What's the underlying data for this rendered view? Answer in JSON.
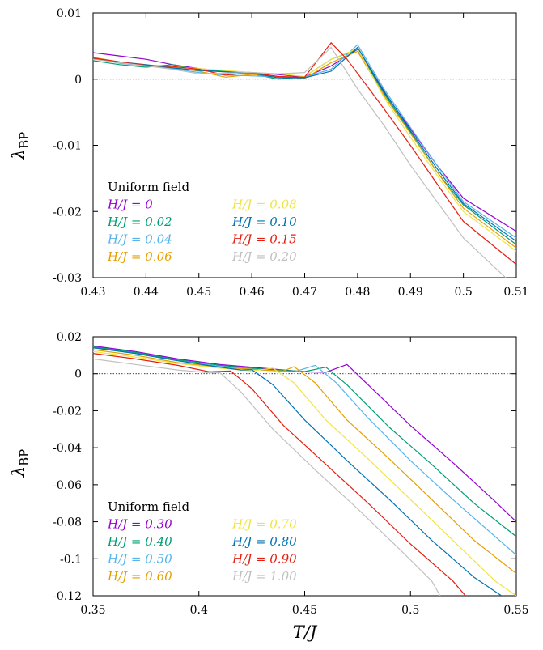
{
  "colors": {
    "purple": "#9400d3",
    "green": "#009e73",
    "skyblue": "#56b4e9",
    "orange": "#e69f00",
    "yellow": "#f0e442",
    "blue": "#0072b2",
    "red": "#e51e10",
    "gray": "#c0c0c0"
  },
  "chart_data": [
    {
      "type": "line",
      "xlabel": "",
      "ylabel": "λ_BP",
      "xlim": [
        0.43,
        0.51
      ],
      "ylim": [
        -0.03,
        0.01
      ],
      "xticks": [
        "0.43",
        "0.44",
        "0.45",
        "0.46",
        "0.47",
        "0.48",
        "0.49",
        "0.5",
        "0.51"
      ],
      "yticks": [
        "-0.03",
        "-0.02",
        "-0.01",
        "0",
        "0.01"
      ],
      "reference_line_y": 0,
      "legend_title": "Uniform field",
      "legend_position": "bottom-left",
      "series": [
        {
          "name": "H/J = 0",
          "color": "#9400d3",
          "points": [
            [
              0.43,
              0.004
            ],
            [
              0.435,
              0.0035
            ],
            [
              0.44,
              0.003
            ],
            [
              0.445,
              0.0022
            ],
            [
              0.45,
              0.0016
            ],
            [
              0.455,
              0.0012
            ],
            [
              0.46,
              0.001
            ],
            [
              0.465,
              0.0007
            ],
            [
              0.47,
              0.0003
            ],
            [
              0.475,
              0.002
            ],
            [
              0.48,
              0.0045
            ],
            [
              0.485,
              -0.002
            ],
            [
              0.49,
              -0.0075
            ],
            [
              0.495,
              -0.013
            ],
            [
              0.5,
              -0.018
            ],
            [
              0.51,
              -0.023
            ]
          ]
        },
        {
          "name": "H/J = 0.02",
          "color": "#009e73",
          "points": [
            [
              0.43,
              0.0028
            ],
            [
              0.435,
              0.0022
            ],
            [
              0.44,
              0.0018
            ],
            [
              0.445,
              0.0022
            ],
            [
              0.45,
              0.0014
            ],
            [
              0.455,
              0.0012
            ],
            [
              0.46,
              0.0008
            ],
            [
              0.465,
              0.0
            ],
            [
              0.47,
              0.0004
            ],
            [
              0.475,
              0.003
            ],
            [
              0.48,
              0.0045
            ],
            [
              0.485,
              -0.0022
            ],
            [
              0.49,
              -0.008
            ],
            [
              0.495,
              -0.014
            ],
            [
              0.5,
              -0.019
            ],
            [
              0.51,
              -0.025
            ]
          ]
        },
        {
          "name": "H/J = 0.04",
          "color": "#56b4e9",
          "points": [
            [
              0.43,
              0.0032
            ],
            [
              0.435,
              0.0024
            ],
            [
              0.44,
              0.002
            ],
            [
              0.445,
              0.0016
            ],
            [
              0.45,
              0.001
            ],
            [
              0.455,
              0.0006
            ],
            [
              0.46,
              0.0005
            ],
            [
              0.465,
              0.0003
            ],
            [
              0.47,
              0.0003
            ],
            [
              0.475,
              0.0015
            ],
            [
              0.48,
              0.0052
            ],
            [
              0.485,
              -0.0015
            ],
            [
              0.49,
              -0.0073
            ],
            [
              0.495,
              -0.013
            ],
            [
              0.5,
              -0.0185
            ],
            [
              0.51,
              -0.024
            ]
          ]
        },
        {
          "name": "H/J = 0.06",
          "color": "#e69f00",
          "points": [
            [
              0.43,
              0.0033
            ],
            [
              0.435,
              0.0026
            ],
            [
              0.44,
              0.002
            ],
            [
              0.445,
              0.0018
            ],
            [
              0.45,
              0.0012
            ],
            [
              0.455,
              0.0003
            ],
            [
              0.46,
              0.0007
            ],
            [
              0.465,
              0.0004
            ],
            [
              0.47,
              0.0001
            ],
            [
              0.475,
              0.0025
            ],
            [
              0.48,
              0.0042
            ],
            [
              0.485,
              -0.0025
            ],
            [
              0.49,
              -0.0082
            ],
            [
              0.495,
              -0.014
            ],
            [
              0.5,
              -0.0195
            ],
            [
              0.51,
              -0.0255
            ]
          ]
        },
        {
          "name": "H/J = 0.08",
          "color": "#f0e442",
          "points": [
            [
              0.43,
              0.003
            ],
            [
              0.435,
              0.0025
            ],
            [
              0.44,
              0.0021
            ],
            [
              0.445,
              0.0019
            ],
            [
              0.45,
              0.0016
            ],
            [
              0.455,
              0.0013
            ],
            [
              0.46,
              0.001
            ],
            [
              0.465,
              0.0008
            ],
            [
              0.47,
              0.0004
            ],
            [
              0.475,
              0.003
            ],
            [
              0.48,
              0.0046
            ],
            [
              0.485,
              -0.0028
            ],
            [
              0.49,
              -0.0088
            ],
            [
              0.495,
              -0.0145
            ],
            [
              0.5,
              -0.02
            ],
            [
              0.51,
              -0.026
            ]
          ]
        },
        {
          "name": "H/J = 0.10",
          "color": "#0072b2",
          "points": [
            [
              0.43,
              0.0031
            ],
            [
              0.435,
              0.0026
            ],
            [
              0.44,
              0.0022
            ],
            [
              0.445,
              0.0017
            ],
            [
              0.45,
              0.0013
            ],
            [
              0.455,
              0.0011
            ],
            [
              0.46,
              0.0009
            ],
            [
              0.465,
              0.0002
            ],
            [
              0.47,
              0.0002
            ],
            [
              0.475,
              0.0012
            ],
            [
              0.48,
              0.0048
            ],
            [
              0.485,
              -0.0018
            ],
            [
              0.49,
              -0.0078
            ],
            [
              0.495,
              -0.0135
            ],
            [
              0.5,
              -0.0188
            ],
            [
              0.51,
              -0.0245
            ]
          ]
        },
        {
          "name": "H/J = 0.15",
          "color": "#e51e10",
          "points": [
            [
              0.43,
              0.0032
            ],
            [
              0.435,
              0.0026
            ],
            [
              0.44,
              0.0021
            ],
            [
              0.445,
              0.0019
            ],
            [
              0.45,
              0.0015
            ],
            [
              0.455,
              0.0006
            ],
            [
              0.46,
              0.001
            ],
            [
              0.465,
              0.0004
            ],
            [
              0.47,
              0.0003
            ],
            [
              0.475,
              0.0055
            ],
            [
              0.478,
              0.003
            ],
            [
              0.485,
              -0.0045
            ],
            [
              0.49,
              -0.01
            ],
            [
              0.495,
              -0.0158
            ],
            [
              0.5,
              -0.0215
            ],
            [
              0.51,
              -0.028
            ]
          ]
        },
        {
          "name": "H/J = 0.20",
          "color": "#c0c0c0",
          "points": [
            [
              0.43,
              0.003
            ],
            [
              0.435,
              0.0025
            ],
            [
              0.44,
              0.002
            ],
            [
              0.445,
              0.0015
            ],
            [
              0.45,
              0.0008
            ],
            [
              0.455,
              0.0009
            ],
            [
              0.46,
              0.001
            ],
            [
              0.465,
              0.0008
            ],
            [
              0.47,
              0.001
            ],
            [
              0.475,
              0.0048
            ],
            [
              0.48,
              -0.0015
            ],
            [
              0.485,
              -0.007
            ],
            [
              0.49,
              -0.013
            ],
            [
              0.495,
              -0.0185
            ],
            [
              0.5,
              -0.024
            ],
            [
              0.508,
              -0.03
            ]
          ]
        }
      ]
    },
    {
      "type": "line",
      "xlabel": "T/J",
      "ylabel": "λ_BP",
      "xlim": [
        0.35,
        0.55
      ],
      "ylim": [
        -0.12,
        0.02
      ],
      "xticks": [
        "0.35",
        "0.4",
        "0.45",
        "0.5",
        "0.55"
      ],
      "yticks": [
        "-0.12",
        "-0.1",
        "-0.08",
        "-0.06",
        "-0.04",
        "-0.02",
        "0",
        "0.02"
      ],
      "reference_line_y": 0,
      "legend_title": "Uniform field",
      "legend_position": "bottom-left",
      "series": [
        {
          "name": "H/J = 0.30",
          "color": "#9400d3",
          "points": [
            [
              0.35,
              0.015
            ],
            [
              0.37,
              0.012
            ],
            [
              0.39,
              0.008
            ],
            [
              0.41,
              0.005
            ],
            [
              0.43,
              0.003
            ],
            [
              0.45,
              0.001
            ],
            [
              0.46,
              0.0008
            ],
            [
              0.47,
              0.005
            ],
            [
              0.48,
              -0.006
            ],
            [
              0.5,
              -0.028
            ],
            [
              0.52,
              -0.048
            ],
            [
              0.54,
              -0.069
            ],
            [
              0.55,
              -0.08
            ]
          ]
        },
        {
          "name": "H/J = 0.40",
          "color": "#009e73",
          "points": [
            [
              0.35,
              0.0145
            ],
            [
              0.37,
              0.0115
            ],
            [
              0.39,
              0.0075
            ],
            [
              0.41,
              0.0045
            ],
            [
              0.43,
              0.0025
            ],
            [
              0.45,
              0.0012
            ],
            [
              0.46,
              0.0035
            ],
            [
              0.47,
              -0.006
            ],
            [
              0.49,
              -0.029
            ],
            [
              0.51,
              -0.049
            ],
            [
              0.53,
              -0.07
            ],
            [
              0.55,
              -0.088
            ]
          ]
        },
        {
          "name": "H/J = 0.50",
          "color": "#56b4e9",
          "points": [
            [
              0.35,
              0.014
            ],
            [
              0.37,
              0.011
            ],
            [
              0.39,
              0.007
            ],
            [
              0.41,
              0.004
            ],
            [
              0.43,
              0.002
            ],
            [
              0.445,
              0.001
            ],
            [
              0.455,
              0.0045
            ],
            [
              0.465,
              -0.005
            ],
            [
              0.48,
              -0.024
            ],
            [
              0.5,
              -0.047
            ],
            [
              0.52,
              -0.068
            ],
            [
              0.55,
              -0.098
            ]
          ]
        },
        {
          "name": "H/J = 0.60",
          "color": "#e69f00",
          "points": [
            [
              0.35,
              0.013
            ],
            [
              0.37,
              0.01
            ],
            [
              0.39,
              0.006
            ],
            [
              0.41,
              0.0035
            ],
            [
              0.43,
              0.002
            ],
            [
              0.44,
              0.0015
            ],
            [
              0.445,
              0.0038
            ],
            [
              0.455,
              -0.005
            ],
            [
              0.47,
              -0.025
            ],
            [
              0.49,
              -0.046
            ],
            [
              0.51,
              -0.068
            ],
            [
              0.53,
              -0.09
            ],
            [
              0.55,
              -0.108
            ]
          ]
        },
        {
          "name": "H/J = 0.70",
          "color": "#f0e442",
          "points": [
            [
              0.35,
              0.012
            ],
            [
              0.37,
              0.009
            ],
            [
              0.39,
              0.0055
            ],
            [
              0.41,
              0.003
            ],
            [
              0.425,
              0.0015
            ],
            [
              0.435,
              0.003
            ],
            [
              0.445,
              -0.005
            ],
            [
              0.46,
              -0.025
            ],
            [
              0.48,
              -0.046
            ],
            [
              0.5,
              -0.068
            ],
            [
              0.52,
              -0.09
            ],
            [
              0.54,
              -0.112
            ],
            [
              0.55,
              -0.12
            ]
          ]
        },
        {
          "name": "H/J = 0.80",
          "color": "#0072b2",
          "points": [
            [
              0.35,
              0.014
            ],
            [
              0.37,
              0.011
            ],
            [
              0.39,
              0.007
            ],
            [
              0.41,
              0.0035
            ],
            [
              0.42,
              0.002
            ],
            [
              0.425,
              0.0022
            ],
            [
              0.435,
              -0.006
            ],
            [
              0.45,
              -0.025
            ],
            [
              0.47,
              -0.047
            ],
            [
              0.49,
              -0.068
            ],
            [
              0.51,
              -0.09
            ],
            [
              0.53,
              -0.11
            ],
            [
              0.543,
              -0.12
            ]
          ]
        },
        {
          "name": "H/J = 0.90",
          "color": "#e51e10",
          "points": [
            [
              0.35,
              0.011
            ],
            [
              0.37,
              0.008
            ],
            [
              0.39,
              0.0045
            ],
            [
              0.405,
              0.001
            ],
            [
              0.415,
              0.0015
            ],
            [
              0.425,
              -0.008
            ],
            [
              0.44,
              -0.028
            ],
            [
              0.46,
              -0.049
            ],
            [
              0.48,
              -0.07
            ],
            [
              0.5,
              -0.092
            ],
            [
              0.52,
              -0.112
            ],
            [
              0.526,
              -0.12
            ]
          ]
        },
        {
          "name": "H/J = 1.00",
          "color": "#c0c0c0",
          "points": [
            [
              0.35,
              0.008
            ],
            [
              0.37,
              0.005
            ],
            [
              0.39,
              0.002
            ],
            [
              0.405,
              0.0005
            ],
            [
              0.41,
              0.0005
            ],
            [
              0.42,
              -0.01
            ],
            [
              0.435,
              -0.03
            ],
            [
              0.455,
              -0.052
            ],
            [
              0.475,
              -0.073
            ],
            [
              0.495,
              -0.095
            ],
            [
              0.51,
              -0.112
            ],
            [
              0.514,
              -0.12
            ]
          ]
        }
      ]
    }
  ]
}
